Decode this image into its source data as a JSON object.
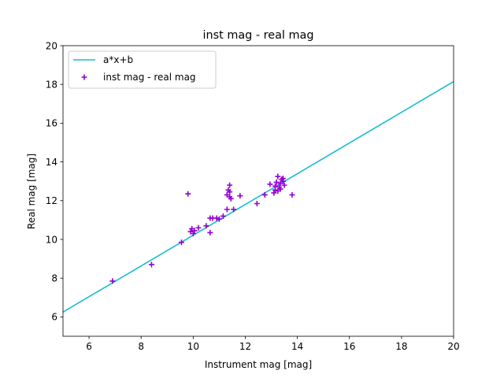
{
  "chart_data": {
    "type": "scatter",
    "title": "inst mag - real mag",
    "xlabel": "Instrument mag [mag]",
    "ylabel": "Real mag [mag]",
    "xlim": [
      5,
      20
    ],
    "ylim": [
      5,
      20
    ],
    "xticks": [
      6,
      8,
      10,
      12,
      14,
      16,
      18,
      20
    ],
    "yticks": [
      6,
      8,
      10,
      12,
      14,
      16,
      18,
      20
    ],
    "grid": false,
    "legend_placement": "upper-left",
    "fit_line": {
      "name": "a*x+b",
      "color": "#17becf",
      "x": [
        5,
        20
      ],
      "y": [
        6.25,
        18.15
      ]
    },
    "series": [
      {
        "name": "inst mag - real mag",
        "marker": "plus",
        "color": "#9400d3",
        "points": [
          [
            6.9,
            7.85
          ],
          [
            8.4,
            8.7
          ],
          [
            9.55,
            9.85
          ],
          [
            9.8,
            12.35
          ],
          [
            9.9,
            10.4
          ],
          [
            9.95,
            10.55
          ],
          [
            10.0,
            10.3
          ],
          [
            10.05,
            10.45
          ],
          [
            10.2,
            10.6
          ],
          [
            10.5,
            10.7
          ],
          [
            10.65,
            11.1
          ],
          [
            10.65,
            10.35
          ],
          [
            10.75,
            11.1
          ],
          [
            10.9,
            11.1
          ],
          [
            11.0,
            11.05
          ],
          [
            11.15,
            11.2
          ],
          [
            11.3,
            11.55
          ],
          [
            11.3,
            12.3
          ],
          [
            11.35,
            12.55
          ],
          [
            11.4,
            12.8
          ],
          [
            11.4,
            12.2
          ],
          [
            11.45,
            12.1
          ],
          [
            11.4,
            12.45
          ],
          [
            11.55,
            11.55
          ],
          [
            11.8,
            12.25
          ],
          [
            12.45,
            11.85
          ],
          [
            12.75,
            12.3
          ],
          [
            12.95,
            12.85
          ],
          [
            13.1,
            12.4
          ],
          [
            13.15,
            12.75
          ],
          [
            13.15,
            12.55
          ],
          [
            13.2,
            12.95
          ],
          [
            13.25,
            13.25
          ],
          [
            13.25,
            12.5
          ],
          [
            13.3,
            12.7
          ],
          [
            13.35,
            12.6
          ],
          [
            13.35,
            12.9
          ],
          [
            13.4,
            13.1
          ],
          [
            13.45,
            13.0
          ],
          [
            13.5,
            12.8
          ],
          [
            13.45,
            13.15
          ],
          [
            13.8,
            12.3
          ]
        ]
      }
    ]
  }
}
